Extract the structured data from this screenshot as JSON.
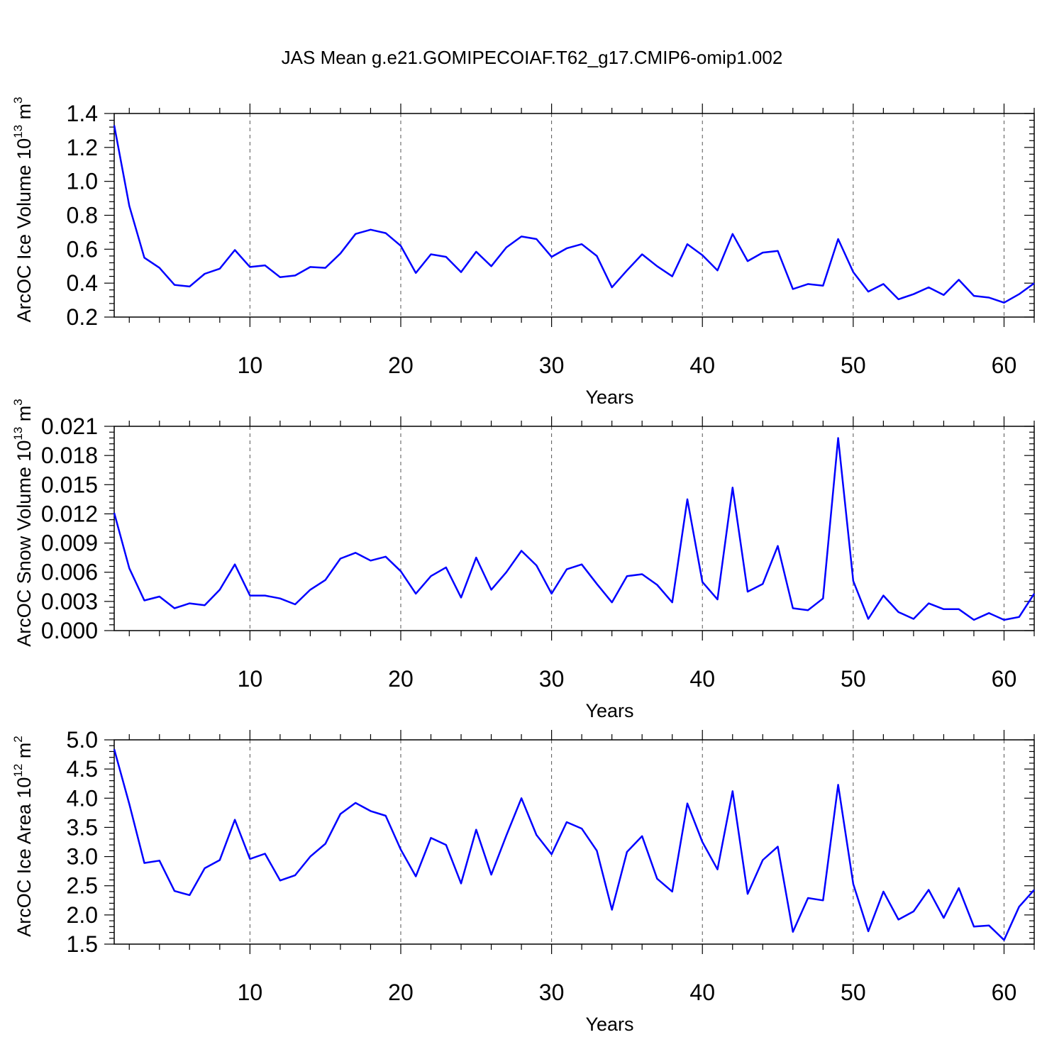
{
  "title": "JAS Mean g.e21.GOMIPECOIAF.T62_g17.CMIP6-omip1.002",
  "colors": {
    "line": "#0000ff",
    "axes": "#000000",
    "grid": "#555555"
  },
  "chart_data": [
    {
      "type": "line",
      "ylabel": "ArcOC Ice Volume 10",
      "ylabel_unit": " m",
      "ylabel_exp": "13",
      "ylabel_unit_exp": "3",
      "xlabel": "Years",
      "xlim": [
        1,
        62
      ],
      "ylim": [
        0.2,
        1.4
      ],
      "xticks": [
        "10",
        "20",
        "30",
        "40",
        "50",
        "60"
      ],
      "yticks": [
        "0.2",
        "0.4",
        "0.6",
        "0.8",
        "1.0",
        "1.2",
        "1.4"
      ],
      "grid_x": [
        10,
        20,
        30,
        40,
        50,
        60
      ],
      "values": [
        1.33,
        0.855,
        0.55,
        0.49,
        0.39,
        0.38,
        0.455,
        0.485,
        0.595,
        0.495,
        0.505,
        0.435,
        0.445,
        0.495,
        0.49,
        0.575,
        0.69,
        0.715,
        0.695,
        0.62,
        0.46,
        0.57,
        0.555,
        0.465,
        0.585,
        0.5,
        0.61,
        0.675,
        0.66,
        0.555,
        0.605,
        0.63,
        0.56,
        0.375,
        0.475,
        0.57,
        0.5,
        0.44,
        0.63,
        0.565,
        0.475,
        0.69,
        0.53,
        0.58,
        0.59,
        0.365,
        0.395,
        0.385,
        0.66,
        0.465,
        0.35,
        0.395,
        0.305,
        0.335,
        0.375,
        0.33,
        0.42,
        0.325,
        0.315,
        0.285,
        0.335,
        0.4
      ]
    },
    {
      "type": "line",
      "ylabel": "ArcOC Snow Volume 10",
      "ylabel_unit": " m",
      "ylabel_exp": "13",
      "ylabel_unit_exp": "3",
      "xlabel": "Years",
      "xlim": [
        1,
        62
      ],
      "ylim": [
        0.0,
        0.021
      ],
      "xticks": [
        "10",
        "20",
        "30",
        "40",
        "50",
        "60"
      ],
      "yticks": [
        "0.000",
        "0.003",
        "0.006",
        "0.009",
        "0.012",
        "0.015",
        "0.018",
        "0.021"
      ],
      "grid_x": [
        10,
        20,
        30,
        40,
        50,
        60
      ],
      "values": [
        0.0121,
        0.0064,
        0.0031,
        0.0035,
        0.0023,
        0.0028,
        0.0026,
        0.0042,
        0.0068,
        0.0036,
        0.0036,
        0.0033,
        0.0027,
        0.0042,
        0.0052,
        0.0074,
        0.008,
        0.0072,
        0.0076,
        0.0061,
        0.0038,
        0.0056,
        0.0065,
        0.0034,
        0.0075,
        0.0042,
        0.006,
        0.0082,
        0.0067,
        0.0038,
        0.0063,
        0.0068,
        0.0048,
        0.0029,
        0.0056,
        0.0058,
        0.0047,
        0.0029,
        0.0135,
        0.005,
        0.0032,
        0.0147,
        0.004,
        0.0048,
        0.0087,
        0.0023,
        0.0021,
        0.0033,
        0.0198,
        0.0051,
        0.0012,
        0.0036,
        0.0019,
        0.0012,
        0.0028,
        0.0022,
        0.0022,
        0.0011,
        0.0018,
        0.0011,
        0.0014,
        0.0038
      ]
    },
    {
      "type": "line",
      "ylabel": "ArcOC Ice Area 10",
      "ylabel_unit": " m",
      "ylabel_exp": "12",
      "ylabel_unit_exp": "2",
      "xlabel": "Years",
      "xlim": [
        1,
        62
      ],
      "ylim": [
        1.5,
        5.0
      ],
      "xticks": [
        "10",
        "20",
        "30",
        "40",
        "50",
        "60"
      ],
      "yticks": [
        "1.5",
        "2.0",
        "2.5",
        "3.0",
        "3.5",
        "4.0",
        "4.5",
        "5.0"
      ],
      "grid_x": [
        10,
        20,
        30,
        40,
        50,
        60
      ],
      "values": [
        4.84,
        3.9,
        2.89,
        2.93,
        2.41,
        2.34,
        2.8,
        2.94,
        3.63,
        2.96,
        3.05,
        2.59,
        2.68,
        3.0,
        3.22,
        3.73,
        3.92,
        3.78,
        3.7,
        3.12,
        2.66,
        3.32,
        3.2,
        2.54,
        3.46,
        2.69,
        3.36,
        4.0,
        3.37,
        3.04,
        3.59,
        3.48,
        3.1,
        2.09,
        3.08,
        3.35,
        2.62,
        2.4,
        3.91,
        3.25,
        2.78,
        4.12,
        2.36,
        2.94,
        3.17,
        1.71,
        2.29,
        2.25,
        4.23,
        2.53,
        1.72,
        2.4,
        1.92,
        2.06,
        2.43,
        1.95,
        2.46,
        1.8,
        1.82,
        1.57,
        2.14,
        2.43
      ]
    }
  ]
}
